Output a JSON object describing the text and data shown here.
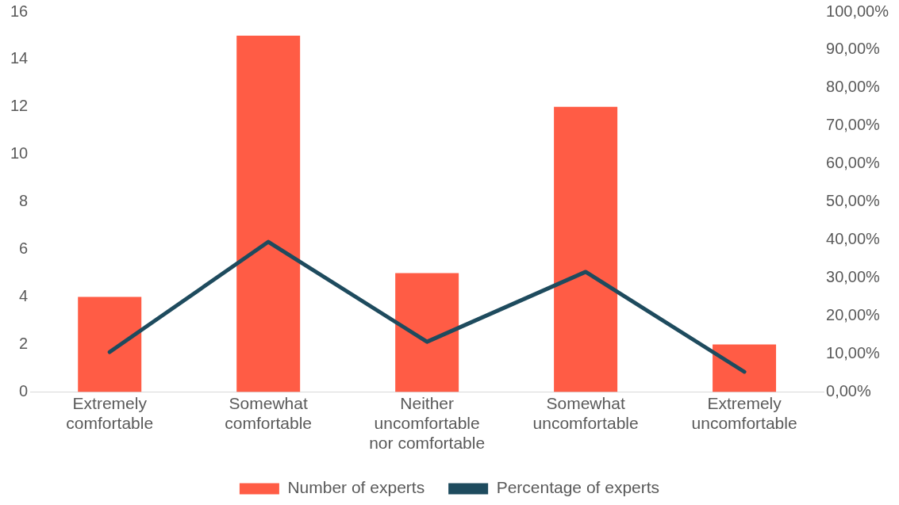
{
  "chart_data": {
    "type": "bar",
    "categories": [
      "Extremely comfortable",
      "Somewhat comfortable",
      "Neither uncomfortable nor comfortable",
      "Somewhat uncomfortable",
      "Extremely uncomfortable"
    ],
    "series": [
      {
        "name": "Number of experts",
        "type": "bar",
        "color": "#ff5c45",
        "values": [
          4,
          15,
          5,
          12,
          2
        ]
      },
      {
        "name": "Percentage of experts",
        "type": "line",
        "axis": "y2",
        "color": "#1e4b5e",
        "values": [
          10.5,
          39.5,
          13.2,
          31.6,
          5.3
        ]
      }
    ],
    "ylim": [
      0,
      16
    ],
    "yticks": [
      0,
      2,
      4,
      6,
      8,
      10,
      12,
      14,
      16
    ],
    "y2lim": [
      0,
      100
    ],
    "y2ticks": [
      {
        "value": 0,
        "label": "0,00%"
      },
      {
        "value": 10,
        "label": "10,00%"
      },
      {
        "value": 20,
        "label": "20,00%"
      },
      {
        "value": 30,
        "label": "30,00%"
      },
      {
        "value": 40,
        "label": "40,00%"
      },
      {
        "value": 50,
        "label": "50,00%"
      },
      {
        "value": 60,
        "label": "60,00%"
      },
      {
        "value": 70,
        "label": "70,00%"
      },
      {
        "value": 80,
        "label": "80,00%"
      },
      {
        "value": 90,
        "label": "90,00%"
      },
      {
        "value": 100,
        "label": "100,00%"
      }
    ],
    "legend": "bottom",
    "grid": false,
    "marker": "none",
    "line_style": "solid"
  }
}
